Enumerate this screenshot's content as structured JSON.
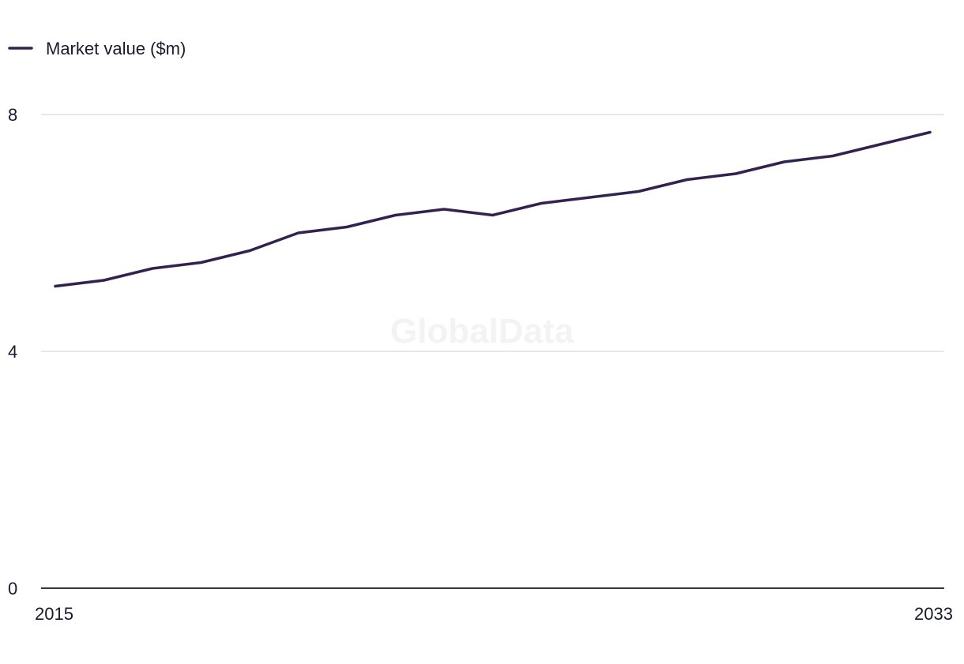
{
  "watermark": "GlobalData",
  "colors": {
    "series": "#33224f",
    "gridline": "#d9d9d9",
    "axis": "#1a1a1a",
    "text": "#1a1a2e",
    "watermark": "#f3f3f3"
  },
  "chart_data": {
    "type": "line",
    "title": "",
    "xlabel": "",
    "ylabel": "",
    "x": [
      2015,
      2016,
      2017,
      2018,
      2019,
      2020,
      2021,
      2022,
      2023,
      2024,
      2025,
      2026,
      2027,
      2028,
      2029,
      2030,
      2031,
      2032,
      2033
    ],
    "x_tick_labels": [
      "2015",
      "2033"
    ],
    "y_ticks": [
      0,
      4,
      8
    ],
    "y_tick_labels": [
      "0",
      "4",
      "8"
    ],
    "ylim": [
      0,
      8
    ],
    "grid": true,
    "legend_position": "top-left",
    "series": [
      {
        "name": "Market value ($m)",
        "values": [
          5.1,
          5.2,
          5.4,
          5.5,
          5.7,
          6.0,
          6.1,
          6.3,
          6.4,
          6.3,
          6.5,
          6.6,
          6.7,
          6.9,
          7.0,
          7.2,
          7.3,
          7.5,
          7.7
        ]
      }
    ]
  }
}
